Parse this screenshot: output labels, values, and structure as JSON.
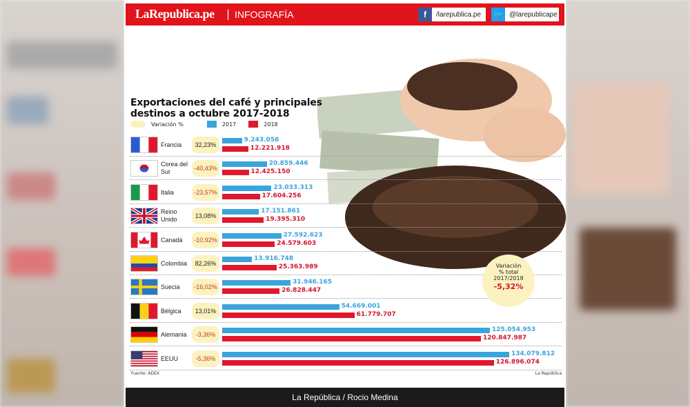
{
  "header": {
    "logo": "LaRepublica.pe",
    "separator": "|",
    "section": "INFOGRAFÍA",
    "facebook": "/larepublica.pe",
    "twitter": "@larepublicape"
  },
  "title_line1": "Exportaciones del café y principales",
  "title_line2": "destinos a octubre 2017-2018",
  "legend": {
    "variation": "Variación %",
    "y2017": "2017",
    "y2018": "2018"
  },
  "colors": {
    "y2017": "#3aa4dc",
    "y2018": "#e1182d",
    "variation": "#fbf2c0",
    "brand": "#e1141b"
  },
  "chart_data": {
    "type": "bar",
    "orientation": "horizontal",
    "categories": [
      "Francia",
      "Corea del Sur",
      "Italia",
      "Reino Unido",
      "Canadá",
      "Colombia",
      "Suecia",
      "Bélgica",
      "Alemania",
      "EEUU"
    ],
    "series": [
      {
        "name": "2017",
        "values": [
          9243056,
          20859446,
          23033313,
          17151861,
          27592623,
          13916748,
          31946165,
          54669001,
          125054953,
          134079812
        ],
        "labels": [
          "9.243.056",
          "20.859.446",
          "23.033.313",
          "17.151.861",
          "27.592.623",
          "13.916.748",
          "31.946.165",
          "54.669.001",
          "125.054.953",
          "134.079.812"
        ]
      },
      {
        "name": "2018",
        "values": [
          12221918,
          12425150,
          17604256,
          19395310,
          24579603,
          25363989,
          26828447,
          61779707,
          120847987,
          126896074
        ],
        "labels": [
          "12.221.918",
          "12.425.150",
          "17.604.256",
          "19.395.310",
          "24.579.603",
          "25.363.989",
          "26.828.447",
          "61.779.707",
          "120.847.987",
          "126.896.074"
        ]
      }
    ],
    "variation": [
      "32,23%",
      "-40,43%",
      "-23,57%",
      "13,08%",
      "-10,92%",
      "82,26%",
      "-16,02%",
      "13,01%",
      "-3,36%",
      "-5,36%"
    ],
    "flags": [
      "france",
      "south-korea",
      "italy",
      "united-kingdom",
      "canada",
      "colombia",
      "sweden",
      "belgium",
      "germany",
      "usa"
    ]
  },
  "total": {
    "line1": "Variación",
    "line2": "% total",
    "line3": "2017/2018",
    "value": "-5,32%"
  },
  "source": "Fuente: ADEX",
  "credit": "La República",
  "footer": "La República / Rocio Medina"
}
